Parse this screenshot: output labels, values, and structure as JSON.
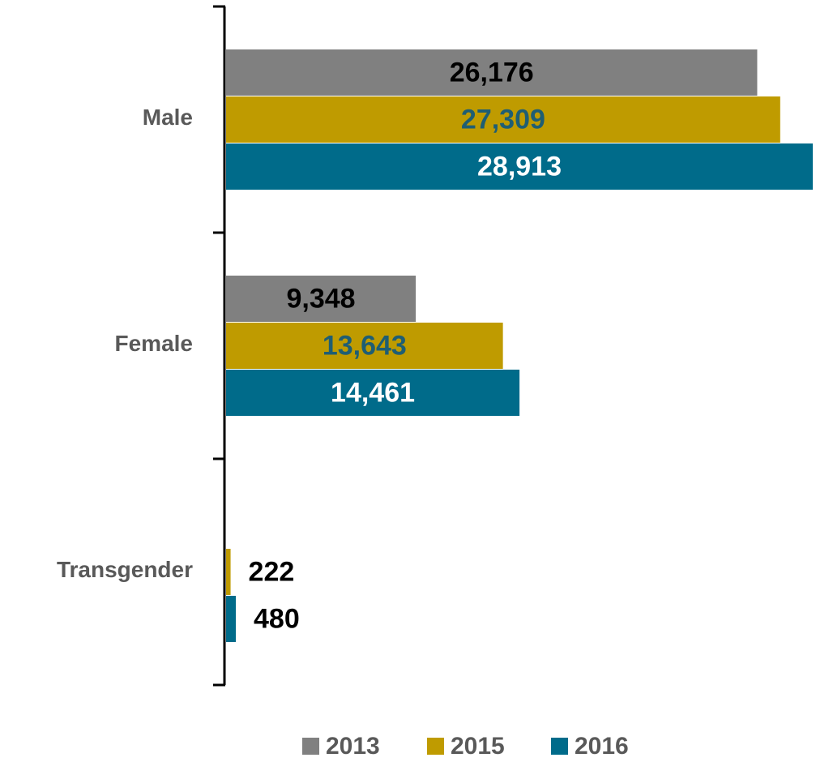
{
  "chart_data": {
    "type": "barh",
    "categories": [
      "Male",
      "Female",
      "Transgender"
    ],
    "series": [
      {
        "name": "2013",
        "color": "#808080",
        "values": [
          26176,
          9348,
          null
        ],
        "value_labels": [
          "26,176",
          "9,348",
          null
        ]
      },
      {
        "name": "2015",
        "color": "#bf9b00",
        "values": [
          27309,
          13643,
          222
        ],
        "value_labels": [
          "27,309",
          "13,643",
          "222"
        ]
      },
      {
        "name": "2016",
        "color": "#006b8a",
        "values": [
          28913,
          14461,
          480
        ],
        "value_labels": [
          "28,913",
          "14,461",
          "480"
        ]
      }
    ],
    "legend": "bottom"
  }
}
